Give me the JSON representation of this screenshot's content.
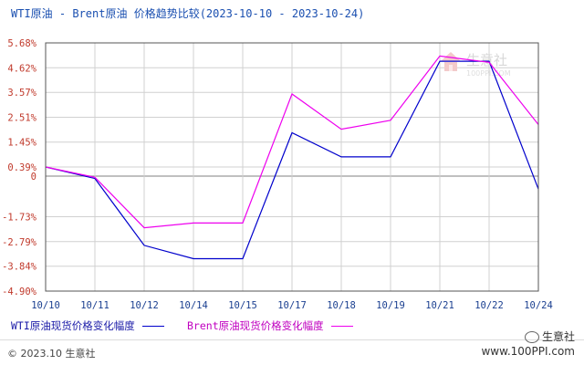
{
  "title": "WTI原油 - Brent原油 价格趋势比较(2023-10-10 - 2023-10-24)",
  "colors": {
    "wti": "#0000cc",
    "brent": "#ee00ee",
    "ytick": "#c0392b",
    "grid": "#d0d0d0",
    "zero": "#9a9a9a",
    "xtick": "#1a3f90"
  },
  "watermark": "生意社",
  "watermark_sub": "100PPI.COM",
  "legend": {
    "wti": "WTI原油现货价格变化幅度",
    "brent": "Brent原油现货价格变化幅度"
  },
  "footer": {
    "copyright": "© 2023.10 生意社",
    "brand_name": "生意社",
    "brand_url": "www.100PPI.com"
  },
  "chart_data": {
    "type": "line",
    "title": "WTI原油 - Brent原油 价格趋势比较(2023-10-10 - 2023-10-24)",
    "xlabel": "",
    "ylabel": "",
    "x_ticks": [
      "10/10",
      "10/11",
      "10/12",
      "10/14",
      "10/15",
      "10/17",
      "10/18",
      "10/19",
      "10/21",
      "10/22",
      "10/24"
    ],
    "y_ticks": [
      "5.68%",
      "4.62%",
      "3.57%",
      "2.51%",
      "1.45%",
      "0.39%",
      "0",
      "-1.73%",
      "-2.79%",
      "-3.84%",
      "-4.90%"
    ],
    "y_tick_values": [
      5.68,
      4.62,
      3.57,
      2.51,
      1.45,
      0.39,
      0,
      -1.73,
      -2.79,
      -3.84,
      -4.9
    ],
    "ylim": [
      -4.9,
      5.68
    ],
    "grid": true,
    "legend_position": "bottom",
    "series": [
      {
        "name": "WTI原油现货价格变化幅度",
        "key": "wti",
        "points": [
          [
            "10/10",
            0.39
          ],
          [
            "10/10.8",
            0.0
          ],
          [
            "10/11.9",
            -2.95
          ],
          [
            "10/12.9",
            -3.52
          ],
          [
            "10/14.5",
            -3.52
          ],
          [
            "10/15.2",
            1.85
          ],
          [
            "10/16.2",
            0.82
          ],
          [
            "10/17.2",
            0.82
          ],
          [
            "10/18",
            2.8
          ],
          [
            "10/19",
            4.9
          ],
          [
            "10/20.2",
            4.9
          ],
          [
            "10/21.2",
            4.9
          ],
          [
            "10/23",
            2.41
          ],
          [
            "10/24",
            -0.55
          ]
        ],
        "x": [
          0,
          1,
          2,
          3,
          4,
          5,
          6,
          7,
          8,
          9,
          10
        ],
        "values": [
          0.39,
          -0.1,
          -2.95,
          -3.52,
          -3.52,
          1.85,
          0.82,
          0.82,
          4.9,
          4.9,
          -0.55
        ]
      },
      {
        "name": "Brent原油现货价格变化幅度",
        "key": "brent",
        "x": [
          0,
          1,
          2,
          3,
          4,
          5,
          6,
          7,
          8,
          9,
          10
        ],
        "values": [
          0.39,
          -0.05,
          -2.2,
          -2.0,
          -2.0,
          3.5,
          2.0,
          2.38,
          5.12,
          4.85,
          2.2
        ]
      }
    ]
  }
}
